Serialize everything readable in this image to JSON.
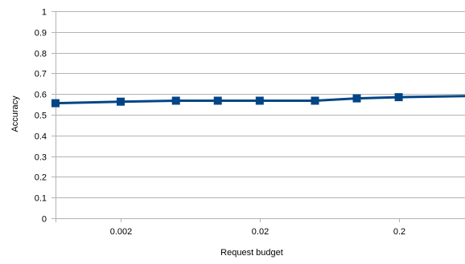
{
  "chart_data": {
    "type": "line",
    "title": "",
    "xlabel": "Request budget",
    "ylabel": "Accuracy",
    "x_scale": "log",
    "xlim": [
      0.00068,
      0.6
    ],
    "ylim": [
      0,
      1
    ],
    "y_ticks": [
      0,
      0.1,
      0.2,
      0.3,
      0.4,
      0.5,
      0.6,
      0.7,
      0.8,
      0.9,
      1
    ],
    "y_tick_labels": [
      "0",
      "0.1",
      "0.2",
      "0.3",
      "0.4",
      "0.5",
      "0.6",
      "0.7",
      "0.8",
      "0.9",
      "1"
    ],
    "x_ticks": [
      0.002,
      0.02,
      0.2
    ],
    "x_tick_labels": [
      "0.002",
      "0.02",
      "0.2"
    ],
    "grid": true,
    "legend": "none",
    "series": [
      {
        "color": "#004586",
        "marker": "square",
        "x": [
          0.00068,
          0.002,
          0.005,
          0.01,
          0.02,
          0.05,
          0.1,
          0.2,
          0.6
        ],
        "y": [
          0.556,
          0.563,
          0.568,
          0.568,
          0.568,
          0.568,
          0.579,
          0.585,
          0.59
        ]
      }
    ]
  }
}
